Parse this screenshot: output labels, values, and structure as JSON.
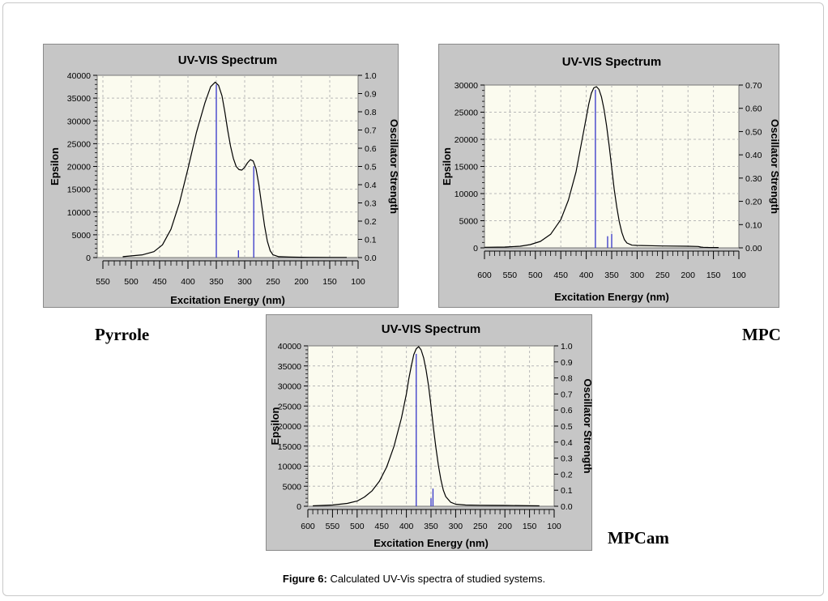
{
  "caption": {
    "label": "Figure 6:",
    "text": "Calculated UV-Vis spectra of studied systems."
  },
  "colors": {
    "panel_bg": "#c6c6c6",
    "plot_bg": "#fbfbef",
    "grid": "#b8b8b8",
    "curve": "#000000",
    "stick": "#3434c8"
  },
  "chart_data": [
    {
      "type": "line",
      "system_label": "Pyrrole",
      "title": "UV-VIS Spectrum",
      "xlabel": "Excitation Energy (nm)",
      "ylabel": "Epsilon",
      "y2label": "Oscillator Strength",
      "x_reversed": true,
      "xlim": [
        100,
        560
      ],
      "ylim": [
        0,
        40000
      ],
      "y2lim": [
        0,
        1.0
      ],
      "x_ticks": [
        "550",
        "500",
        "450",
        "400",
        "350",
        "300",
        "250",
        "200",
        "150",
        "100"
      ],
      "y_ticks": [
        "0",
        "5000",
        "10000",
        "15000",
        "20000",
        "25000",
        "30000",
        "35000",
        "40000"
      ],
      "y2_ticks": [
        "0.0",
        "0.1",
        "0.2",
        "0.3",
        "0.4",
        "0.5",
        "0.6",
        "0.7",
        "0.8",
        "0.9",
        "1.0"
      ],
      "grid": true,
      "curve": {
        "x": [
          515,
          480,
          460,
          445,
          430,
          415,
          400,
          385,
          370,
          360,
          352,
          346,
          340,
          335,
          330,
          325,
          320,
          315,
          310,
          305,
          300,
          295,
          290,
          285,
          280,
          275,
          270,
          265,
          260,
          255,
          250,
          240,
          220,
          200,
          180,
          150,
          130,
          120
        ],
        "y": [
          200,
          600,
          1300,
          2800,
          6200,
          12000,
          19500,
          27500,
          34000,
          37500,
          38500,
          37800,
          35500,
          32000,
          28000,
          24500,
          21800,
          20000,
          19300,
          19200,
          19800,
          20800,
          21500,
          21200,
          19500,
          16000,
          11500,
          7000,
          3600,
          1500,
          600,
          200,
          100,
          80,
          60,
          40,
          30,
          30
        ]
      },
      "sticks": {
        "x": [
          350,
          311,
          284
        ],
        "f": [
          0.95,
          0.04,
          0.5
        ]
      }
    },
    {
      "type": "line",
      "system_label": "MPC",
      "title": "UV-VIS Spectrum",
      "xlabel": "Excitation Energy (nm)",
      "ylabel": "Epsilon",
      "y2label": "Oscillator Strength",
      "x_reversed": true,
      "xlim": [
        100,
        600
      ],
      "ylim": [
        0,
        30000
      ],
      "y2lim": [
        0,
        0.7
      ],
      "x_ticks": [
        "600",
        "550",
        "500",
        "450",
        "400",
        "350",
        "300",
        "250",
        "200",
        "150",
        "100"
      ],
      "y_ticks": [
        "0",
        "5000",
        "10000",
        "15000",
        "20000",
        "25000",
        "30000"
      ],
      "y2_ticks": [
        "0.00",
        "0.10",
        "0.20",
        "0.30",
        "0.40",
        "0.50",
        "0.60",
        "0.70"
      ],
      "grid": true,
      "curve": {
        "x": [
          600,
          560,
          530,
          510,
          490,
          470,
          450,
          435,
          420,
          410,
          400,
          395,
          390,
          385,
          380,
          375,
          370,
          365,
          360,
          355,
          350,
          345,
          340,
          335,
          330,
          325,
          320,
          310,
          300,
          250,
          200,
          180,
          175,
          170,
          160,
          140
        ],
        "y": [
          100,
          150,
          300,
          600,
          1200,
          2500,
          5200,
          8800,
          14000,
          19000,
          24000,
          26500,
          28500,
          29500,
          29700,
          29200,
          27800,
          25500,
          22500,
          18800,
          14800,
          10800,
          7500,
          4800,
          2800,
          1500,
          900,
          500,
          450,
          350,
          300,
          250,
          150,
          100,
          80,
          60
        ]
      },
      "sticks": {
        "x": [
          382,
          358,
          350
        ],
        "f": [
          0.68,
          0.05,
          0.06
        ]
      }
    },
    {
      "type": "line",
      "system_label": "MPCam",
      "title": "UV-VIS Spectrum",
      "xlabel": "Excitation Energy (nm)",
      "ylabel": "Epsilon",
      "y2label": "Oscillator Strength",
      "x_reversed": true,
      "xlim": [
        100,
        600
      ],
      "ylim": [
        0,
        40000
      ],
      "y2lim": [
        0,
        1.0
      ],
      "x_ticks": [
        "600",
        "550",
        "500",
        "450",
        "400",
        "350",
        "300",
        "250",
        "200",
        "150",
        "100"
      ],
      "y_ticks": [
        "0",
        "5000",
        "10000",
        "15000",
        "20000",
        "25000",
        "30000",
        "35000",
        "40000"
      ],
      "y2_ticks": [
        "0.0",
        "0.1",
        "0.2",
        "0.3",
        "0.4",
        "0.5",
        "0.6",
        "0.7",
        "0.8",
        "0.9",
        "1.0"
      ],
      "grid": true,
      "curve": {
        "x": [
          590,
          550,
          520,
          500,
          485,
          470,
          455,
          440,
          425,
          410,
          400,
          395,
          390,
          385,
          380,
          375,
          370,
          365,
          360,
          355,
          350,
          345,
          340,
          335,
          330,
          325,
          320,
          310,
          300,
          280,
          250,
          200,
          150,
          130
        ],
        "y": [
          100,
          300,
          700,
          1300,
          2300,
          3800,
          6200,
          9800,
          15000,
          22000,
          28000,
          31800,
          35000,
          37800,
          39300,
          39800,
          39000,
          37000,
          34000,
          30000,
          25000,
          19500,
          14500,
          10200,
          6600,
          4000,
          2400,
          1000,
          500,
          300,
          250,
          200,
          120,
          100
        ]
      },
      "sticks": {
        "x": [
          380,
          350,
          346
        ],
        "f": [
          0.95,
          0.05,
          0.11
        ]
      }
    }
  ]
}
